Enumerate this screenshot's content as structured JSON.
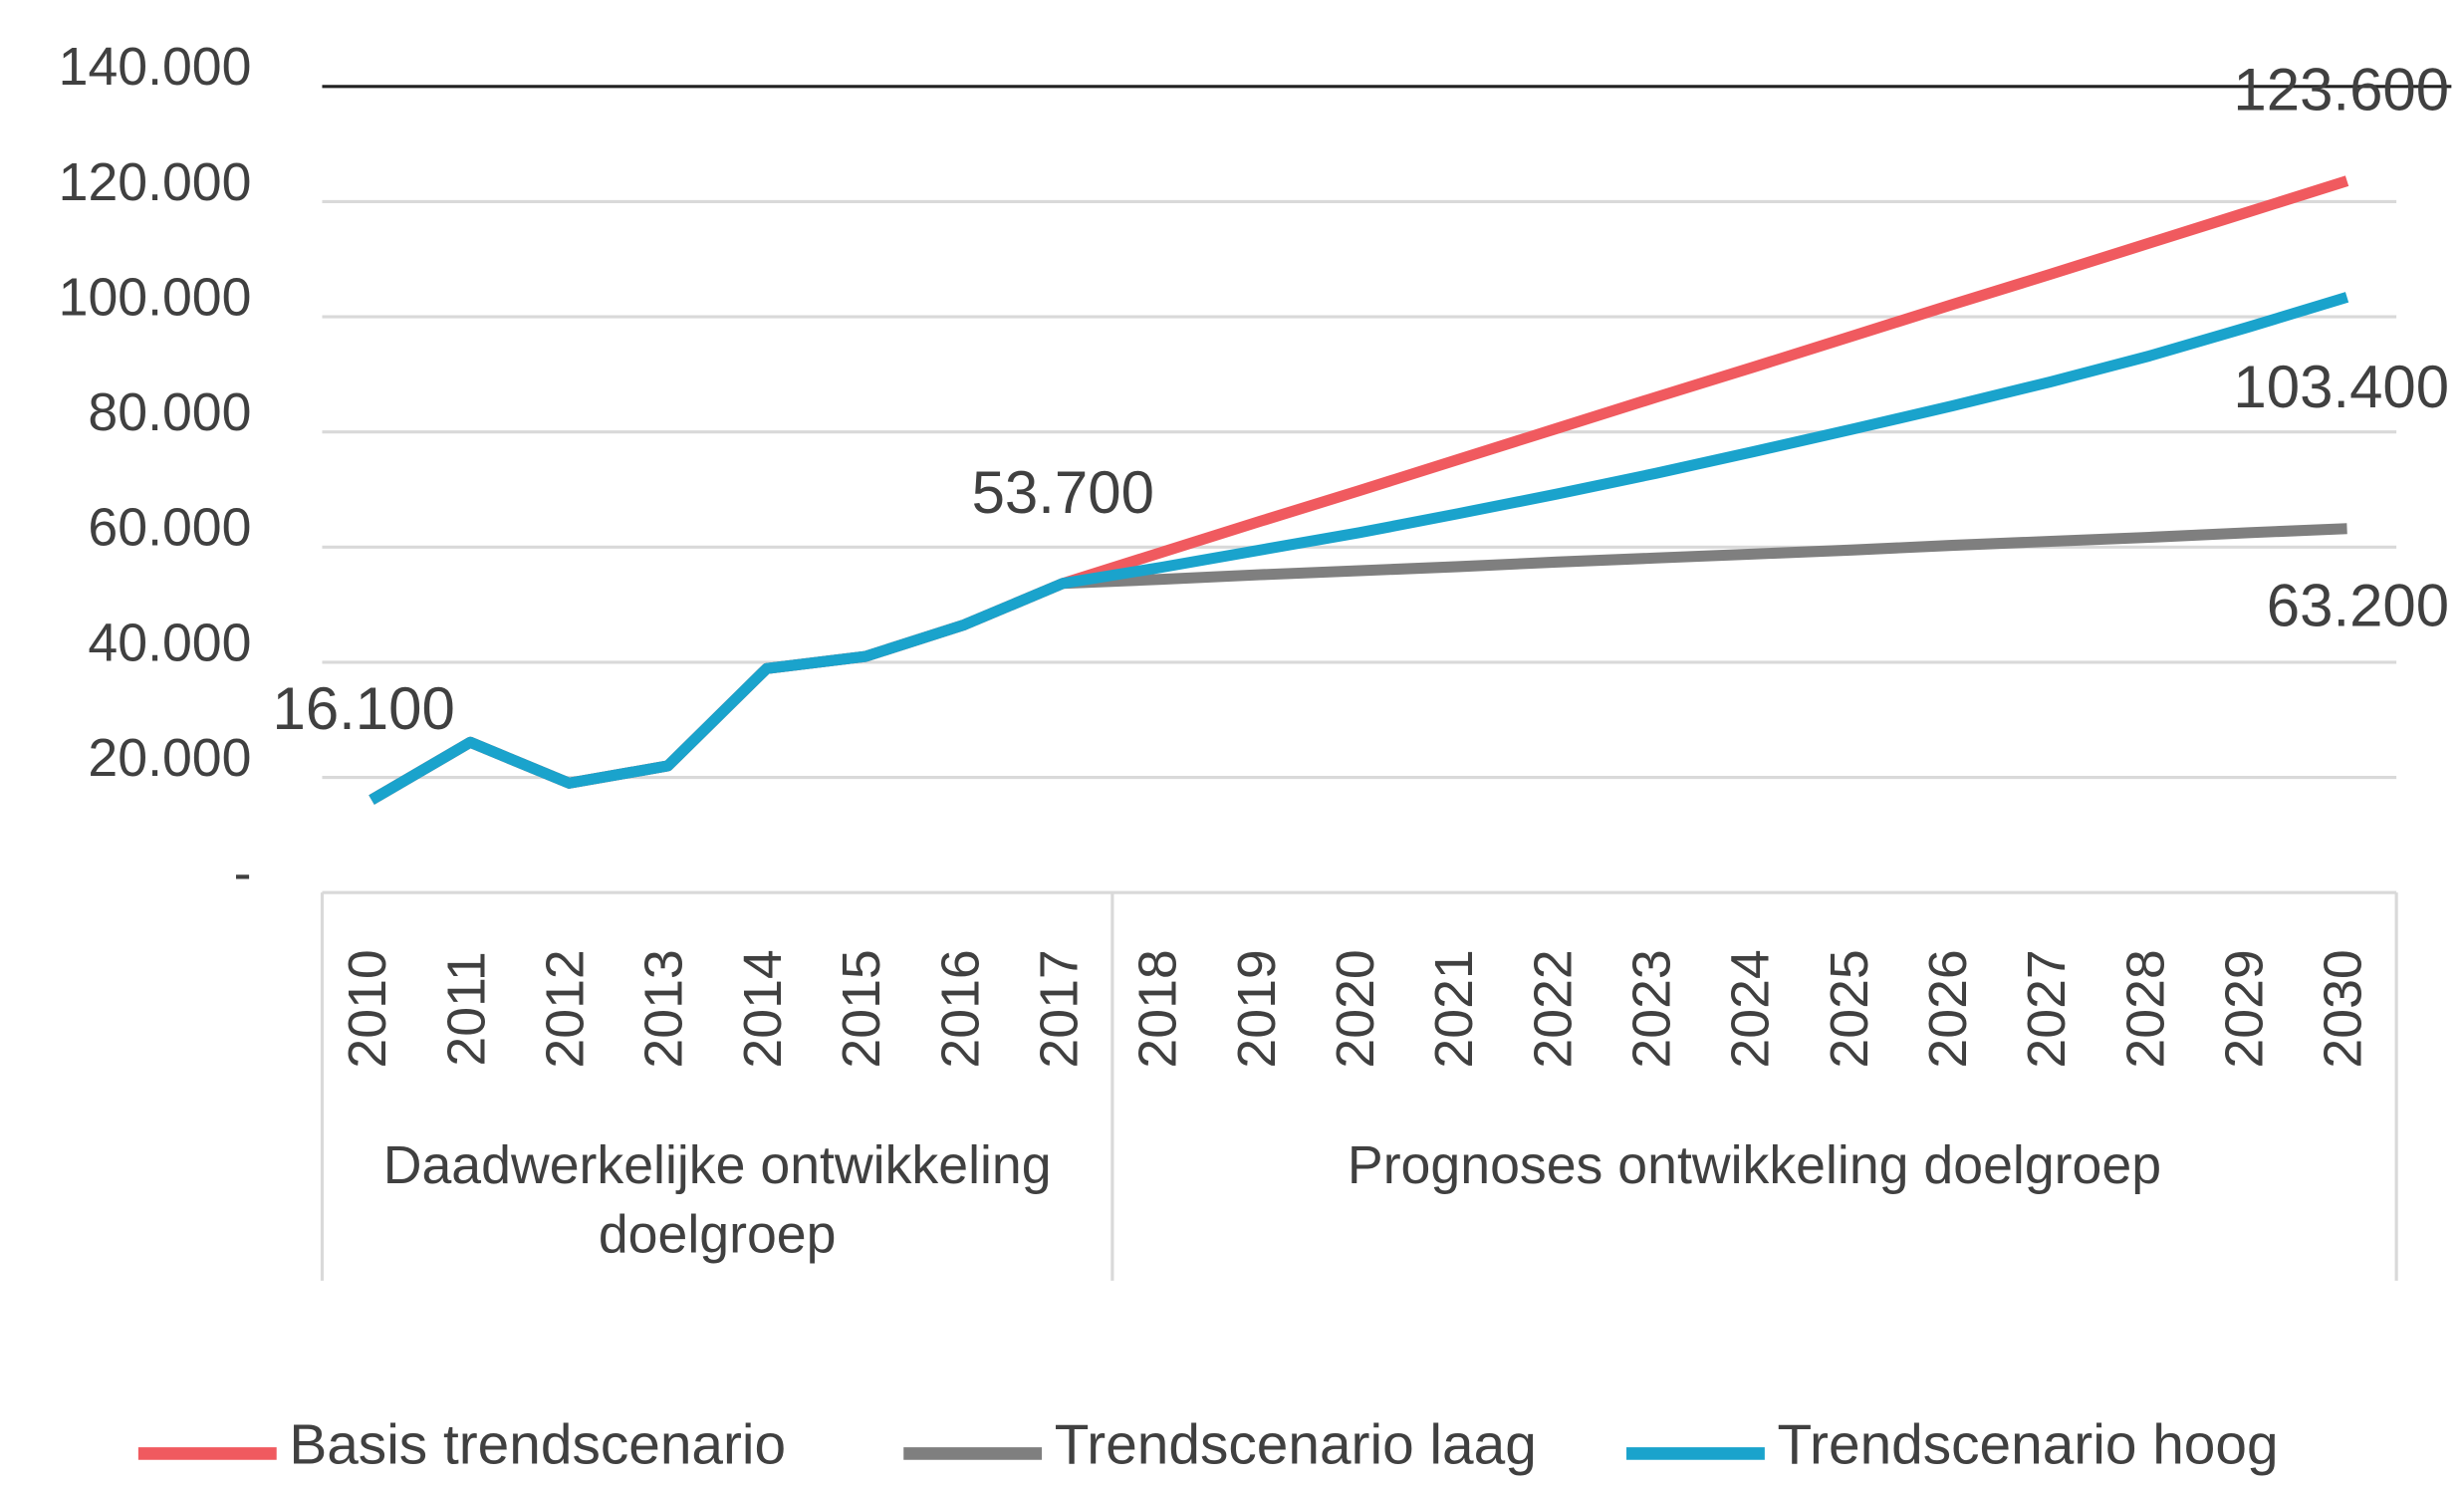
{
  "chart_data": {
    "type": "line",
    "categories": [
      "2010",
      "2011",
      "2012",
      "2013",
      "2014",
      "2015",
      "2016",
      "2017",
      "2018",
      "2019",
      "2020",
      "2021",
      "2022",
      "2023",
      "2024",
      "2025",
      "2026",
      "2027",
      "2028",
      "2029",
      "2030"
    ],
    "category_groups": [
      {
        "label": "Daadwerkelijke ontwikkeling doelgroep",
        "count": 8
      },
      {
        "label": "Prognoses ontwikkeling doelgroep",
        "count": 13
      }
    ],
    "series": [
      {
        "name": "Basis trendscenario",
        "color": "#f05a5f",
        "values": [
          16100,
          26100,
          19000,
          22000,
          38900,
          41000,
          46500,
          53700,
          59100,
          64500,
          69800,
          75200,
          80600,
          86000,
          91300,
          96700,
          102100,
          107400,
          112800,
          118200,
          123600
        ],
        "value_labels": [
          null,
          null,
          null,
          null,
          null,
          null,
          null,
          null,
          null,
          null,
          null,
          null,
          null,
          null,
          null,
          null,
          null,
          null,
          null,
          null,
          "123.600"
        ]
      },
      {
        "name": "Trendscenario laag",
        "color": "#7f7f7f",
        "values": [
          16100,
          26100,
          19000,
          22000,
          38900,
          41000,
          46500,
          53700,
          54400,
          55200,
          55900,
          56600,
          57400,
          58100,
          58800,
          59500,
          60300,
          61000,
          61700,
          62500,
          63200
        ],
        "value_labels": [
          null,
          null,
          null,
          null,
          null,
          null,
          null,
          null,
          null,
          null,
          null,
          null,
          null,
          null,
          null,
          null,
          null,
          null,
          null,
          null,
          "63.200"
        ]
      },
      {
        "name": "Trendscenario hoog",
        "color": "#1aa3cc",
        "values": [
          16100,
          26100,
          19000,
          22000,
          38900,
          41000,
          46500,
          53700,
          56500,
          59500,
          62500,
          65800,
          69200,
          72800,
          76600,
          80500,
          84500,
          88700,
          93200,
          98200,
          103400
        ],
        "value_labels": [
          "16.100",
          null,
          null,
          null,
          null,
          null,
          null,
          "53.700",
          null,
          null,
          null,
          null,
          null,
          null,
          null,
          null,
          null,
          null,
          null,
          null,
          "103.400"
        ]
      }
    ],
    "ylim": [
      0,
      140000
    ],
    "yticks": [
      {
        "value": 0,
        "label": "-"
      },
      {
        "value": 20000,
        "label": "20.000"
      },
      {
        "value": 40000,
        "label": "40.000"
      },
      {
        "value": 60000,
        "label": "60.000"
      },
      {
        "value": 80000,
        "label": "80.000"
      },
      {
        "value": 100000,
        "label": "100.000"
      },
      {
        "value": 120000,
        "label": "120.000"
      },
      {
        "value": 140000,
        "label": "140.000"
      }
    ],
    "grid": true,
    "legend": "bottom"
  }
}
